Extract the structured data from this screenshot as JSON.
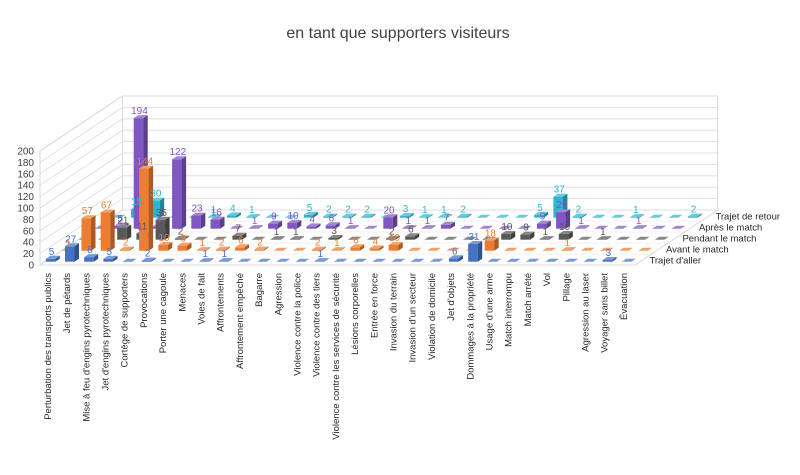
{
  "chart_data": {
    "type": "bar",
    "subtype": "3d-column",
    "title": "en tant que supporters visiteurs",
    "xlabel": "",
    "ylabel": "",
    "ylim": [
      0,
      200
    ],
    "yticks": [
      0,
      20,
      40,
      60,
      80,
      100,
      120,
      140,
      160,
      180,
      200
    ],
    "grid": true,
    "legend": "none",
    "categories": [
      "Perturbation des transports publics",
      "Jet de pétards",
      "Mise à feu d'engins pyrotechniques",
      "Jet d'engins pyrotechniques",
      "Cortège de supporters",
      "Provocations",
      "Porter une cagoule",
      "Menaces",
      "Voies de fait",
      "Affrontements",
      "Affrontement empêché",
      "Bagarre",
      "Agression",
      "Violence contre la police",
      "Violence contre des tiers",
      "Violence contre les services de sécurité",
      "Lésions corporelles",
      "Entrée en force",
      "Invasion du terrain",
      "Invasion d'un secteur",
      "Violation de domicile",
      "Jet d'objets",
      "Dommages à la propriété",
      "Usage d'une arme",
      "Match interrompu",
      "Match arrêté",
      "Vol",
      "Pillage",
      "Agression au laser",
      "Voyager sans billet",
      "Évacuation"
    ],
    "series": [
      {
        "name": "Trajet d'aller",
        "color": "#4472c4",
        "values": [
          5,
          27,
          8,
          5,
          0,
          2,
          0,
          0,
          1,
          1,
          0,
          0,
          0,
          0,
          1,
          0,
          0,
          0,
          0,
          0,
          0,
          6,
          31,
          0,
          0,
          0,
          0,
          0,
          0,
          3,
          0
        ]
      },
      {
        "name": "Avant le match",
        "color": "#ed7d31",
        "values": [
          1,
          57,
          67,
          2,
          144,
          10,
          9,
          1,
          2,
          6,
          2,
          0,
          0,
          2,
          1,
          6,
          4,
          10,
          0,
          0,
          0,
          0,
          18,
          0,
          0,
          0,
          1,
          0,
          0,
          0,
          0
        ]
      },
      {
        "name": "Pendant le match",
        "color": "#595959",
        "values": [
          0,
          0,
          21,
          11,
          35,
          2,
          0,
          0,
          7,
          0,
          1,
          1,
          0,
          3,
          0,
          0,
          2,
          6,
          0,
          0,
          0,
          0,
          10,
          9,
          1,
          10,
          0,
          1,
          0,
          0,
          0
        ]
      },
      {
        "name": "Après le match",
        "color": "#7e57c2",
        "values": [
          0,
          5,
          194,
          4,
          122,
          23,
          16,
          0,
          1,
          9,
          10,
          4,
          6,
          1,
          0,
          20,
          1,
          1,
          7,
          0,
          0,
          0,
          0,
          9,
          29,
          1,
          0,
          0,
          1,
          0,
          0
        ]
      },
      {
        "name": "Trajet de retour",
        "color": "#2fb4d0",
        "values": [
          0,
          15,
          30,
          0,
          0,
          1,
          4,
          1,
          0,
          0,
          5,
          2,
          2,
          2,
          0,
          3,
          1,
          1,
          2,
          0,
          0,
          0,
          5,
          37,
          2,
          0,
          0,
          1,
          0,
          0,
          2
        ]
      }
    ]
  }
}
